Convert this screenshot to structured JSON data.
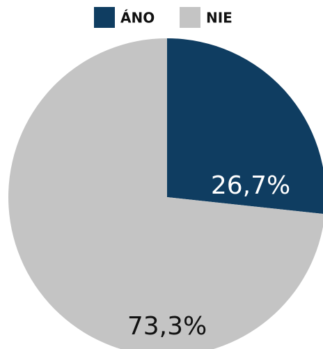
{
  "chart_data": {
    "type": "pie",
    "categories": [
      "ÁNO",
      "NIE"
    ],
    "values": [
      26.7,
      73.3
    ],
    "value_labels": [
      "26,7%",
      "73,3%"
    ],
    "colors": [
      "#0f3d61",
      "#c4c4c4"
    ],
    "legend": "top"
  }
}
